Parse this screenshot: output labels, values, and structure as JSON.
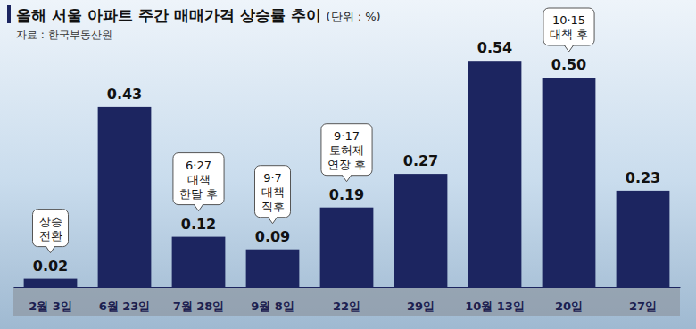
{
  "chart_data": {
    "type": "bar",
    "title": "올해 서울 아파트 주간 매매가격 상승률 추이",
    "subtitle": "(단위 : %)",
    "source": "자료 : 한국부동산원",
    "categories": [
      "2월 3일",
      "6월 23일",
      "7월 28일",
      "9월 8일",
      "22일",
      "29일",
      "10월 13일",
      "20일",
      "27일"
    ],
    "values": [
      0.02,
      0.43,
      0.12,
      0.09,
      0.19,
      0.27,
      0.54,
      0.5,
      0.23
    ],
    "value_labels": [
      "0.02",
      "0.43",
      "0.12",
      "0.09",
      "0.19",
      "0.27",
      "0.54",
      "0.50",
      "0.23"
    ],
    "color": "#1c2560",
    "ylim": [
      0,
      0.6
    ],
    "grid": false,
    "data_labels": true,
    "tick_labels": "x",
    "annotations": [
      {
        "category": "2월 3일",
        "lines": [
          "상승",
          "전환"
        ]
      },
      {
        "category": "7월 28일",
        "lines": [
          "6·27",
          "대책",
          "한달 후"
        ]
      },
      {
        "category": "9월 8일",
        "lines": [
          "9·7",
          "대책",
          "직후"
        ]
      },
      {
        "category": "22일",
        "lines": [
          "9·17",
          "토허제",
          "연장 후"
        ]
      },
      {
        "category": "20일",
        "lines": [
          "10·15",
          "대책 후"
        ]
      }
    ]
  }
}
